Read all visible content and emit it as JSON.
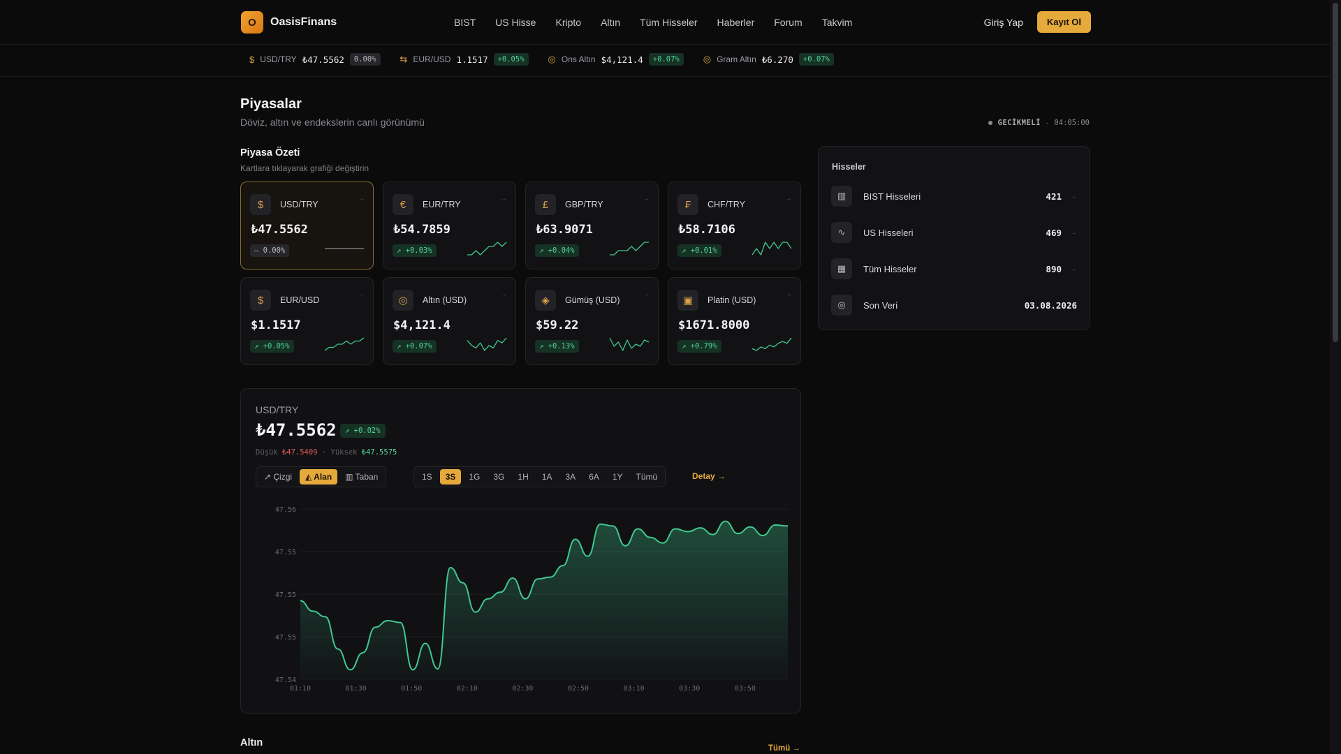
{
  "brand": {
    "initial": "O",
    "name": "OasisFinans"
  },
  "nav": [
    "BIST",
    "US Hisse",
    "Kripto",
    "Altın",
    "Tüm Hisseler",
    "Haberler",
    "Forum",
    "Takvim"
  ],
  "auth": {
    "login": "Giriş Yap",
    "signup": "Kayıt Ol"
  },
  "ticker": [
    {
      "icon": "dollar-icon",
      "glyph": "$",
      "name": "USD/TRY",
      "value": "₺47.5562",
      "change": "0.00%",
      "trend": "flat"
    },
    {
      "icon": "exchange-icon",
      "glyph": "⇆",
      "name": "EUR/USD",
      "value": "1.1517",
      "change": "+0.05%",
      "trend": "up"
    },
    {
      "icon": "coins-icon",
      "glyph": "◎",
      "name": "Ons Altın",
      "value": "$4,121.4",
      "change": "+0.07%",
      "trend": "up"
    },
    {
      "icon": "coins-icon",
      "glyph": "◎",
      "name": "Gram Altın",
      "value": "₺6.270",
      "change": "+0.07%",
      "trend": "up"
    }
  ],
  "page": {
    "title": "Piyasalar",
    "subtitle": "Döviz, altın ve endekslerin canlı görünümü",
    "status": "GECİKMELİ",
    "time": "04:05:00"
  },
  "summary": {
    "title": "Piyasa Özeti",
    "subtitle": "Kartlara tıklayarak grafiği değiştirin"
  },
  "cards": [
    {
      "icon": "dollar-icon",
      "glyph": "$",
      "name": "USD/TRY",
      "value": "₺47.5562",
      "change": "— 0.00%",
      "trend": "flat",
      "spark": [
        5,
        5,
        5,
        5,
        5,
        5,
        5,
        5,
        5,
        5
      ]
    },
    {
      "icon": "euro-icon",
      "glyph": "€",
      "name": "EUR/TRY",
      "value": "₺54.7859",
      "change": "↗ +0.03%",
      "trend": "up",
      "spark": [
        3,
        3,
        4,
        3,
        4,
        5,
        5,
        6,
        5,
        6
      ]
    },
    {
      "icon": "pound-icon",
      "glyph": "£",
      "name": "GBP/TRY",
      "value": "₺63.9071",
      "change": "↗ +0.04%",
      "trend": "up",
      "spark": [
        3,
        3,
        4,
        4,
        4,
        5,
        4,
        5,
        6,
        6
      ]
    },
    {
      "icon": "franc-icon",
      "glyph": "₣",
      "name": "CHF/TRY",
      "value": "₺58.7106",
      "change": "↗ +0.01%",
      "trend": "up",
      "spark": [
        3,
        4,
        3,
        5,
        4,
        5,
        4,
        5,
        5,
        4
      ]
    },
    {
      "icon": "dollar-icon",
      "glyph": "$",
      "name": "EUR/USD",
      "value": "$1.1517",
      "change": "↗ +0.05%",
      "trend": "up",
      "spark": [
        2,
        3,
        3,
        4,
        4,
        5,
        4,
        5,
        5,
        6
      ]
    },
    {
      "icon": "coins-icon",
      "glyph": "◎",
      "name": "Altın (USD)",
      "value": "$4,121.4",
      "change": "↗ +0.07%",
      "trend": "up",
      "spark": [
        6,
        4,
        3,
        5,
        2,
        4,
        3,
        6,
        5,
        7
      ]
    },
    {
      "icon": "gem-icon",
      "glyph": "◈",
      "name": "Gümüş (USD)",
      "value": "$59.22",
      "change": "↗ +0.13%",
      "trend": "up",
      "spark": [
        7,
        3,
        5,
        1,
        6,
        2,
        4,
        3,
        6,
        5
      ]
    },
    {
      "icon": "wallet-icon",
      "glyph": "▣",
      "name": "Platin (USD)",
      "value": "$1671.8000",
      "change": "↗ +0.79%",
      "trend": "up",
      "spark": [
        2,
        1,
        3,
        2,
        4,
        3,
        5,
        6,
        5,
        8
      ]
    }
  ],
  "stocks_panel": {
    "title": "Hisseler",
    "rows": [
      {
        "icon": "bar-chart-icon",
        "glyph": "▥",
        "label": "BIST Hisseleri",
        "count": "421"
      },
      {
        "icon": "activity-icon",
        "glyph": "∿",
        "label": "US Hisseleri",
        "count": "469"
      },
      {
        "icon": "building-icon",
        "glyph": "▦",
        "label": "Tüm Hisseler",
        "count": "890"
      },
      {
        "icon": "coins-icon",
        "glyph": "◎",
        "label": "Son Veri",
        "count": "03.08.2026"
      }
    ]
  },
  "chart": {
    "symbol": "USD/TRY",
    "value": "₺47.5562",
    "change": "↗ +0.02%",
    "low_label": "Düşük",
    "low": "₺47.5409",
    "high_label": "Yüksek",
    "high": "₺47.5575",
    "chart_types": [
      {
        "label": "↗ Çizgi",
        "active": false
      },
      {
        "label": "◭ Alan",
        "active": true
      },
      {
        "label": "▥ Taban",
        "active": false
      }
    ],
    "ranges": [
      {
        "label": "1S",
        "active": false
      },
      {
        "label": "3S",
        "active": true
      },
      {
        "label": "1G",
        "active": false
      },
      {
        "label": "3G",
        "active": false
      },
      {
        "label": "1H",
        "active": false
      },
      {
        "label": "1A",
        "active": false
      },
      {
        "label": "3A",
        "active": false
      },
      {
        "label": "6A",
        "active": false
      },
      {
        "label": "1Y",
        "active": false
      },
      {
        "label": "Tümü",
        "active": false
      }
    ],
    "detail_link": "Detay →"
  },
  "chart_data": {
    "type": "area",
    "title": "",
    "xlabel": "",
    "ylabel": "",
    "ytick_labels": [
      "47.56",
      "47.55",
      "47.55",
      "47.55",
      "47.54"
    ],
    "xtick_labels": [
      "01:10",
      "01:30",
      "01:50",
      "02:10",
      "02:30",
      "02:50",
      "03:10",
      "03:30",
      "03:50"
    ],
    "ylim": [
      47.54,
      47.558
    ],
    "grid": true,
    "color": "#3fc98f",
    "series": [
      {
        "values": [
          47.5483,
          47.5472,
          47.5466,
          47.5432,
          47.541,
          47.5428,
          47.5455,
          47.5462,
          47.546,
          47.541,
          47.5438,
          47.5411,
          47.5518,
          47.5502,
          47.5471,
          47.5485,
          47.5492,
          47.5507,
          47.5485,
          47.5506,
          47.5508,
          47.552,
          47.5548,
          47.553,
          47.5564,
          47.5562,
          47.5541,
          47.5559,
          47.555,
          47.5544,
          47.5559,
          47.5556,
          47.556,
          47.5553,
          47.5567,
          47.5554,
          47.5561,
          47.5552,
          47.5563,
          47.5562
        ]
      }
    ]
  },
  "bottom": {
    "title": "Altın",
    "link": "Tümü →"
  }
}
